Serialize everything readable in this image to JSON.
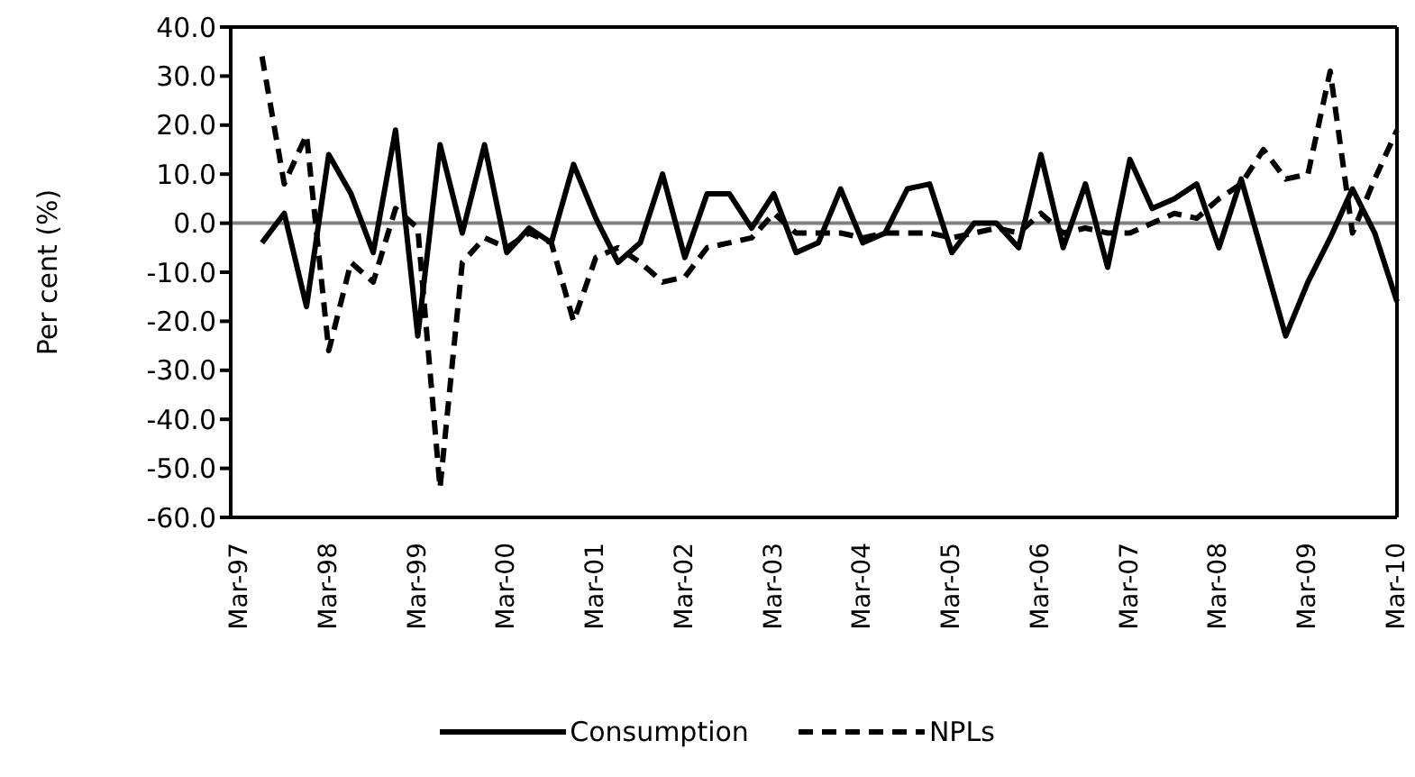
{
  "chart_data": {
    "type": "line",
    "ylabel": "Per cent (%)",
    "legend": "bottom",
    "grid": false,
    "marker": "none",
    "categories": [
      "Mar-97",
      null,
      null,
      null,
      "Mar-98",
      null,
      null,
      null,
      "Mar-99",
      null,
      null,
      null,
      "Mar-00",
      null,
      null,
      null,
      "Mar-01",
      null,
      null,
      null,
      "Mar-02",
      null,
      null,
      null,
      "Mar-03",
      null,
      null,
      null,
      "Mar-04",
      null,
      null,
      null,
      "Mar-05",
      null,
      null,
      null,
      "Mar-06",
      null,
      null,
      null,
      "Mar-07",
      null,
      null,
      null,
      "Mar-08",
      null,
      null,
      null,
      "Mar-09",
      null,
      null,
      null,
      "Mar-10"
    ],
    "series": [
      {
        "name": "Consumption",
        "color": "#000000",
        "line_style": "solid",
        "values": [
          null,
          -4,
          2,
          -17,
          14,
          6,
          -6,
          19,
          -23,
          16,
          -2,
          16,
          -6,
          -1,
          -4,
          12,
          1,
          -8,
          -4,
          10,
          -7,
          6,
          6,
          -1,
          6,
          -6,
          -4,
          7,
          -4,
          -2,
          7,
          8,
          -6,
          0,
          0,
          -5,
          14,
          -5,
          8,
          -9,
          13,
          3,
          5,
          8,
          -5,
          9,
          -7,
          -23,
          -12,
          -3,
          7,
          -2,
          -16
        ]
      },
      {
        "name": "NPLs",
        "color": "#000000",
        "line_style": "dashed",
        "values": [
          null,
          34,
          8,
          18,
          -26,
          -8,
          -12,
          3,
          -1,
          -54,
          -8,
          -3,
          -5,
          -2,
          -4,
          -20,
          -7,
          -5,
          -8,
          -12,
          -11,
          -5,
          -4,
          -3,
          2,
          -2,
          -2,
          -2,
          -3,
          -2,
          -2,
          -2,
          -3,
          -2,
          -1,
          -2,
          2,
          -2,
          -1,
          -2,
          -2,
          0,
          2,
          1,
          5,
          8,
          15,
          9,
          10,
          31,
          -2,
          9,
          19
        ]
      }
    ],
    "ylim": [
      -60,
      40
    ],
    "yticks": [
      {
        "value": 40,
        "label": "40.0"
      },
      {
        "value": 30,
        "label": "30.0"
      },
      {
        "value": 20,
        "label": "20.0"
      },
      {
        "value": 10,
        "label": "10.0"
      },
      {
        "value": 0,
        "label": "0.0"
      },
      {
        "value": -10,
        "label": "-10.0"
      },
      {
        "value": -20,
        "label": "-20.0"
      },
      {
        "value": -30,
        "label": "-30.0"
      },
      {
        "value": -40,
        "label": "-40.0"
      },
      {
        "value": -50,
        "label": "-50.0"
      },
      {
        "value": -60,
        "label": "-60.0"
      }
    ],
    "ref_lines": [
      {
        "axis": "y",
        "value": 0,
        "color": "#808080"
      }
    ]
  }
}
